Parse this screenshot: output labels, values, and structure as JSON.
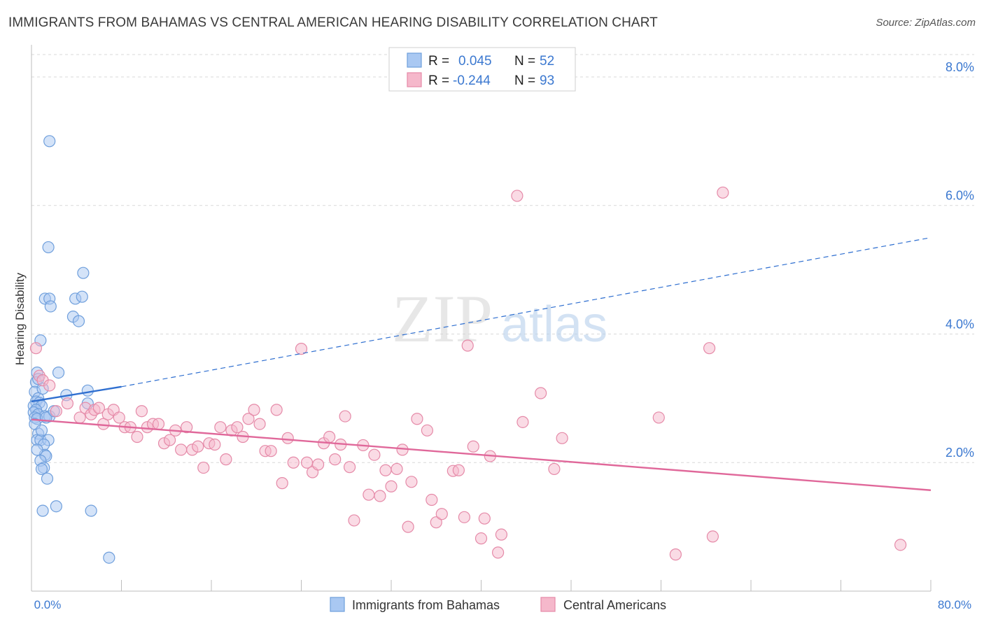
{
  "title": "IMMIGRANTS FROM BAHAMAS VS CENTRAL AMERICAN HEARING DISABILITY CORRELATION CHART",
  "source": "Source: ZipAtlas.com",
  "watermark": {
    "zip": "ZIP",
    "atlas": "atlas"
  },
  "colors": {
    "blue_fill": "#a9c8f2",
    "blue_stroke": "#6f9fdc",
    "blue_line": "#2f6fd0",
    "pink_fill": "#f5b8cb",
    "pink_stroke": "#e58aa8",
    "pink_line": "#e0689a",
    "tick_label": "#3b78d0",
    "grid": "#d9d9d9"
  },
  "legend_top": {
    "rows": [
      {
        "series": "blue",
        "r_label": "R = ",
        "r_value": "0.045",
        "n_label": "N = ",
        "n_value": "52"
      },
      {
        "series": "pink",
        "r_label": "R = ",
        "r_value": "-0.244",
        "n_label": "N = ",
        "n_value": "93"
      }
    ]
  },
  "chart_data": {
    "type": "scatter",
    "title": "IMMIGRANTS FROM BAHAMAS VS CENTRAL AMERICAN HEARING DISABILITY CORRELATION CHART",
    "xlabel": "",
    "ylabel": "Hearing Disability",
    "xlim": [
      0,
      80
    ],
    "ylim": [
      0,
      8.5
    ],
    "x_tick_labels": [
      "0.0%",
      "80.0%"
    ],
    "y_ticks": [
      2,
      4,
      6,
      8
    ],
    "y_tick_labels": [
      "2.0%",
      "4.0%",
      "6.0%",
      "8.0%"
    ],
    "grid": true,
    "legend_position": "bottom-center",
    "series": [
      {
        "name": "Immigrants from Bahamas",
        "color": "blue",
        "trend": {
          "solid": [
            [
              0,
              2.95
            ],
            [
              8,
              3.18
            ]
          ],
          "dashed": [
            [
              8,
              3.18
            ],
            [
              80,
              5.5
            ]
          ]
        },
        "points": [
          [
            1.6,
            7.0
          ],
          [
            1.5,
            5.35
          ],
          [
            4.6,
            4.95
          ],
          [
            1.2,
            4.55
          ],
          [
            1.6,
            4.55
          ],
          [
            3.9,
            4.55
          ],
          [
            4.5,
            4.58
          ],
          [
            1.7,
            4.43
          ],
          [
            3.7,
            4.27
          ],
          [
            4.2,
            4.2
          ],
          [
            0.8,
            3.9
          ],
          [
            2.4,
            3.4
          ],
          [
            0.5,
            3.4
          ],
          [
            0.4,
            3.25
          ],
          [
            0.3,
            3.1
          ],
          [
            5.0,
            3.12
          ],
          [
            3.1,
            3.05
          ],
          [
            0.6,
            3.0
          ],
          [
            0.4,
            2.95
          ],
          [
            0.7,
            2.93
          ],
          [
            5.0,
            2.92
          ],
          [
            0.2,
            2.88
          ],
          [
            0.9,
            2.88
          ],
          [
            0.4,
            2.82
          ],
          [
            0.2,
            2.78
          ],
          [
            0.6,
            2.75
          ],
          [
            1.2,
            2.72
          ],
          [
            1.6,
            2.72
          ],
          [
            0.3,
            2.7
          ],
          [
            0.5,
            2.68
          ],
          [
            1.3,
            2.7
          ],
          [
            0.6,
            2.45
          ],
          [
            0.5,
            2.35
          ],
          [
            0.8,
            2.35
          ],
          [
            1.5,
            2.35
          ],
          [
            1.1,
            2.28
          ],
          [
            1.2,
            2.12
          ],
          [
            1.3,
            2.1
          ],
          [
            0.8,
            2.03
          ],
          [
            1.1,
            1.92
          ],
          [
            0.9,
            1.9
          ],
          [
            1.4,
            1.75
          ],
          [
            2.2,
            1.32
          ],
          [
            1.0,
            1.25
          ],
          [
            5.3,
            1.25
          ],
          [
            6.9,
            0.52
          ],
          [
            0.6,
            3.3
          ],
          [
            0.3,
            2.6
          ],
          [
            0.9,
            2.5
          ],
          [
            1.0,
            3.15
          ],
          [
            0.5,
            2.2
          ],
          [
            2.0,
            2.8
          ]
        ]
      },
      {
        "name": "Central Americans",
        "color": "pink",
        "trend": {
          "solid": [
            [
              0,
              2.67
            ],
            [
              80,
              1.57
            ]
          ]
        },
        "points": [
          [
            0.4,
            3.78
          ],
          [
            0.7,
            3.35
          ],
          [
            1.0,
            3.28
          ],
          [
            1.6,
            3.2
          ],
          [
            2.2,
            2.8
          ],
          [
            3.2,
            2.92
          ],
          [
            4.3,
            2.7
          ],
          [
            4.8,
            2.85
          ],
          [
            5.3,
            2.75
          ],
          [
            5.6,
            2.82
          ],
          [
            6.0,
            2.85
          ],
          [
            6.4,
            2.6
          ],
          [
            6.8,
            2.75
          ],
          [
            7.3,
            2.82
          ],
          [
            7.8,
            2.7
          ],
          [
            8.3,
            2.55
          ],
          [
            8.8,
            2.55
          ],
          [
            9.4,
            2.4
          ],
          [
            9.8,
            2.8
          ],
          [
            10.3,
            2.55
          ],
          [
            10.8,
            2.6
          ],
          [
            11.3,
            2.6
          ],
          [
            11.8,
            2.3
          ],
          [
            12.3,
            2.35
          ],
          [
            12.8,
            2.5
          ],
          [
            13.3,
            2.2
          ],
          [
            13.8,
            2.55
          ],
          [
            14.3,
            2.2
          ],
          [
            14.8,
            2.25
          ],
          [
            15.3,
            1.92
          ],
          [
            15.8,
            2.3
          ],
          [
            16.3,
            2.28
          ],
          [
            16.8,
            2.55
          ],
          [
            17.3,
            2.05
          ],
          [
            17.8,
            2.5
          ],
          [
            18.3,
            2.55
          ],
          [
            18.8,
            2.4
          ],
          [
            19.3,
            2.68
          ],
          [
            19.8,
            2.82
          ],
          [
            20.3,
            2.6
          ],
          [
            20.8,
            2.18
          ],
          [
            21.3,
            2.18
          ],
          [
            21.8,
            2.82
          ],
          [
            22.3,
            1.68
          ],
          [
            22.8,
            2.38
          ],
          [
            23.3,
            2.0
          ],
          [
            24.0,
            3.77
          ],
          [
            24.5,
            2.0
          ],
          [
            25.0,
            1.85
          ],
          [
            25.5,
            1.97
          ],
          [
            26.0,
            2.3
          ],
          [
            26.5,
            2.4
          ],
          [
            27.0,
            2.05
          ],
          [
            27.5,
            2.28
          ],
          [
            27.9,
            2.72
          ],
          [
            28.3,
            1.93
          ],
          [
            28.7,
            1.1
          ],
          [
            29.5,
            2.27
          ],
          [
            30.0,
            1.5
          ],
          [
            30.5,
            2.12
          ],
          [
            31.0,
            1.48
          ],
          [
            31.5,
            1.88
          ],
          [
            32.0,
            1.63
          ],
          [
            32.5,
            1.9
          ],
          [
            33.0,
            2.2
          ],
          [
            33.5,
            1.0
          ],
          [
            33.8,
            1.7
          ],
          [
            34.3,
            2.68
          ],
          [
            35.2,
            2.5
          ],
          [
            35.6,
            1.42
          ],
          [
            36.0,
            1.07
          ],
          [
            36.5,
            1.2
          ],
          [
            37.5,
            1.87
          ],
          [
            38.0,
            1.88
          ],
          [
            38.5,
            1.15
          ],
          [
            38.8,
            3.82
          ],
          [
            39.3,
            2.25
          ],
          [
            40.0,
            0.82
          ],
          [
            40.3,
            1.13
          ],
          [
            40.8,
            2.1
          ],
          [
            41.5,
            0.6
          ],
          [
            41.8,
            0.88
          ],
          [
            43.2,
            6.15
          ],
          [
            43.7,
            2.63
          ],
          [
            45.3,
            3.08
          ],
          [
            46.5,
            1.9
          ],
          [
            47.2,
            2.38
          ],
          [
            55.8,
            2.7
          ],
          [
            57.3,
            0.57
          ],
          [
            60.3,
            3.78
          ],
          [
            60.6,
            0.85
          ],
          [
            61.5,
            6.2
          ],
          [
            77.3,
            0.72
          ]
        ]
      }
    ]
  },
  "bottom_legend": {
    "items": [
      "Immigrants from Bahamas",
      "Central Americans"
    ]
  }
}
